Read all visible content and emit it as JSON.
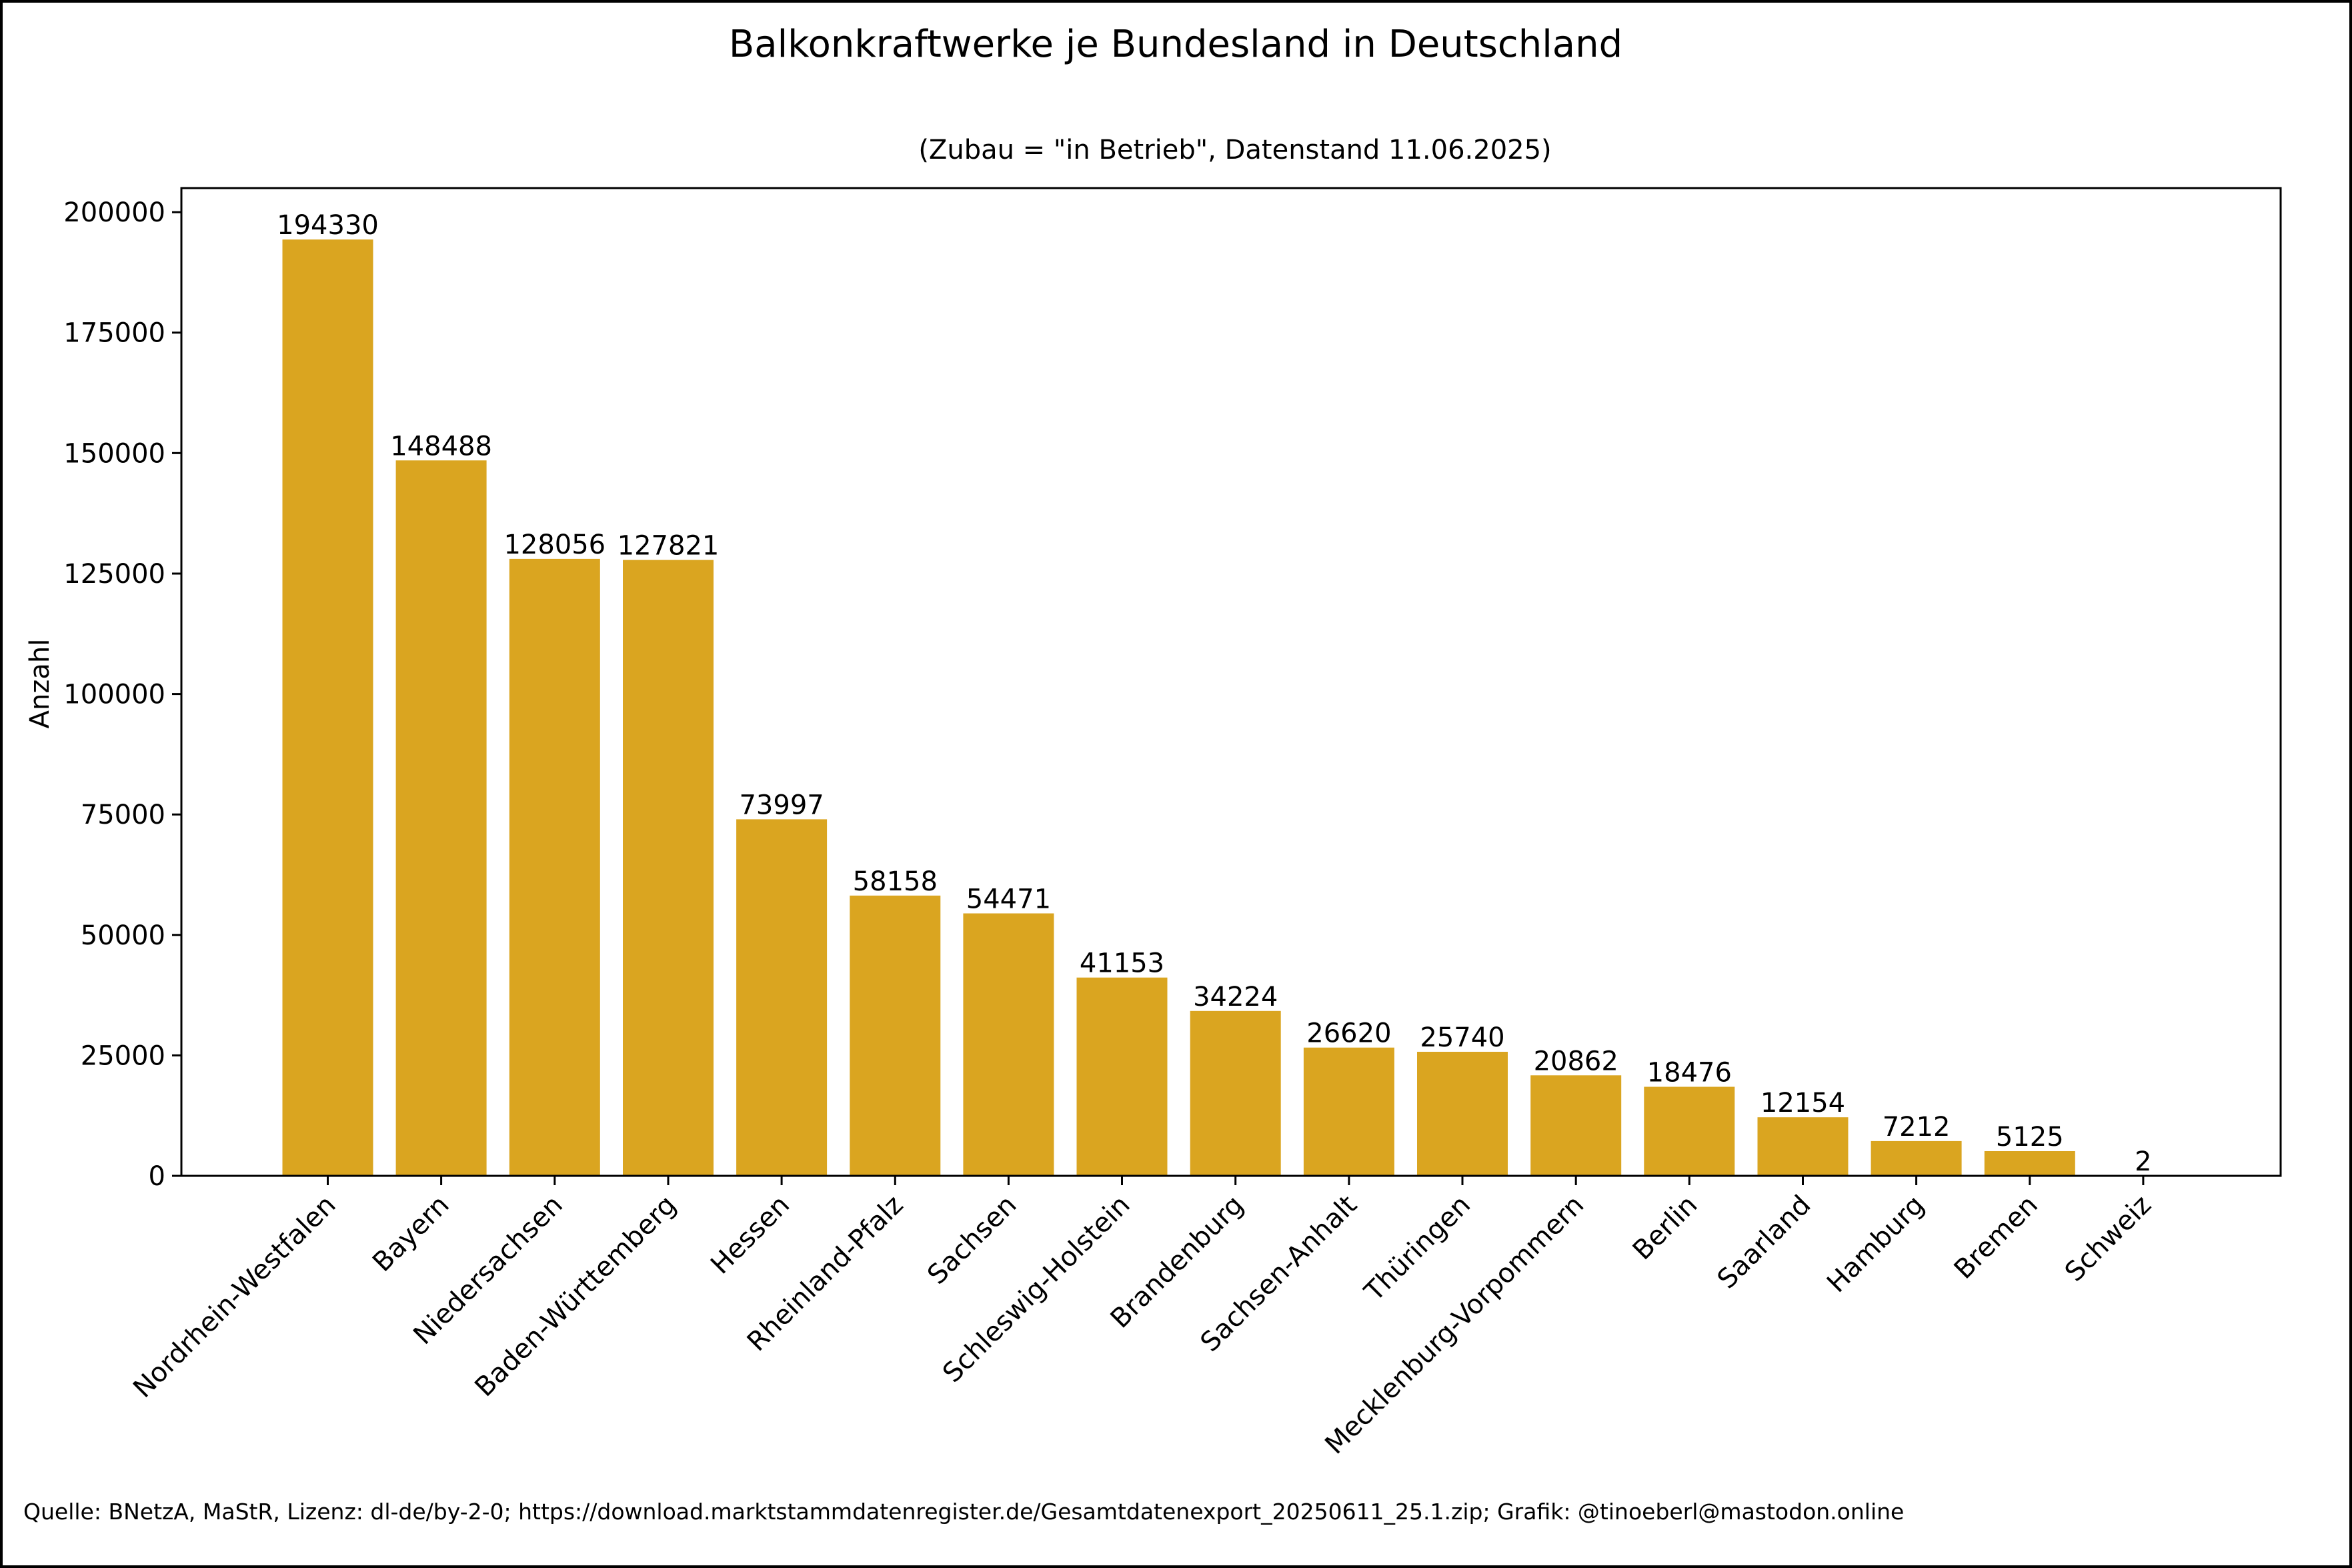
{
  "chart_data": {
    "type": "bar",
    "title": "Balkonkraftwerke je Bundesland in Deutschland",
    "subtitle": "(Zubau = \"in Betrieb\", Datenstand 11.06.2025)",
    "xlabel": "",
    "ylabel": "Anzahl",
    "ylim": [
      0,
      205000
    ],
    "yticks": [
      0,
      25000,
      50000,
      75000,
      100000,
      125000,
      150000,
      175000,
      200000
    ],
    "bar_color": "#DAA520",
    "grid": false,
    "categories": [
      "Nordrhein-Westfalen",
      "Bayern",
      "Niedersachsen",
      "Baden-Württemberg",
      "Hessen",
      "Rheinland-Pfalz",
      "Sachsen",
      "Schleswig-Holstein",
      "Brandenburg",
      "Sachsen-Anhalt",
      "Thüringen",
      "Mecklenburg-Vorpommern",
      "Berlin",
      "Saarland",
      "Hamburg",
      "Bremen",
      "Schweiz"
    ],
    "values": [
      194330,
      148488,
      128056,
      127821,
      73997,
      58158,
      54471,
      41153,
      34224,
      26620,
      25740,
      20862,
      18476,
      12154,
      7212,
      5125,
      2
    ]
  },
  "footer": {
    "source": "Quelle: BNetzA, MaStR, Lizenz: dl-de/by-2-0; https://download.marktstammdatenregister.de/Gesamtdatenexport_20250611_25.1.zip; Grafik: @tinoeberl@mastodon.online"
  }
}
